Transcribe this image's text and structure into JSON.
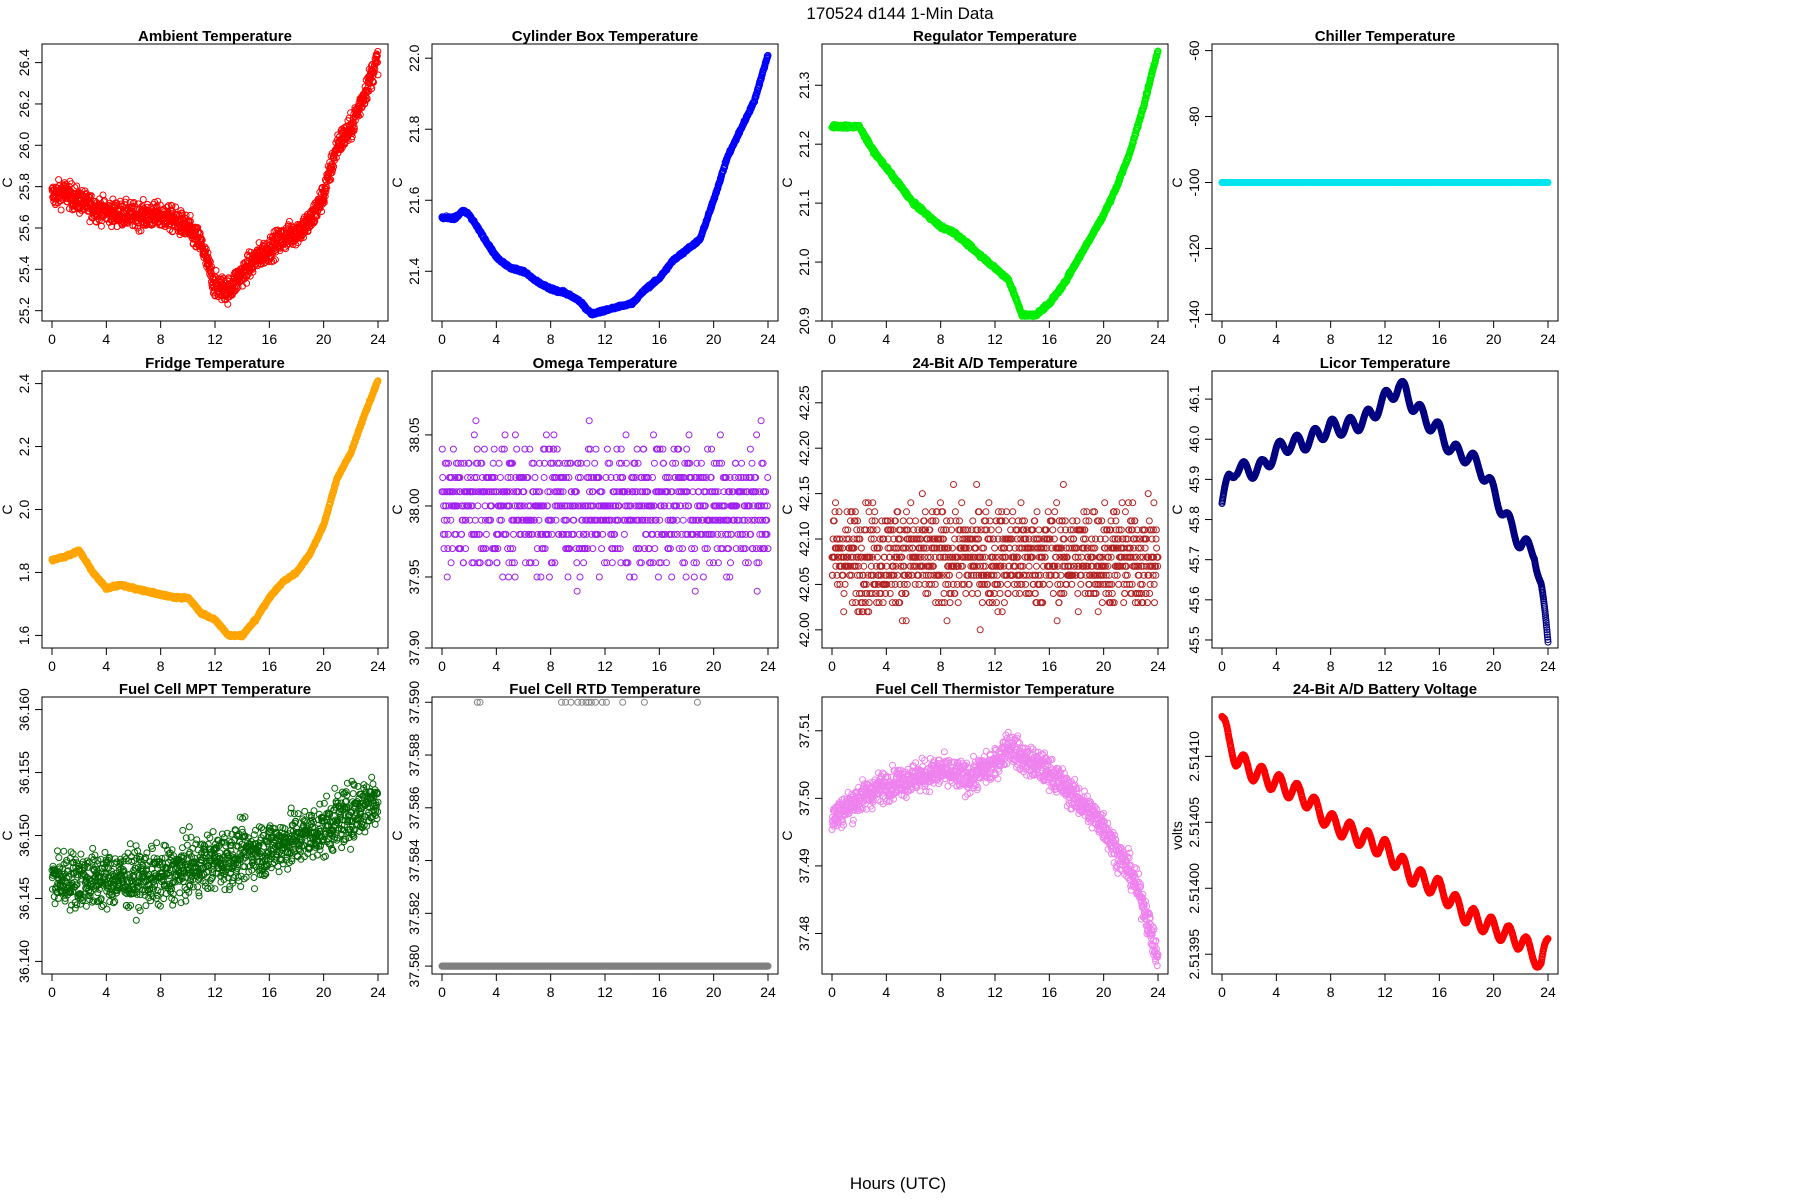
{
  "figure": {
    "title": "170524   d144   1-Min Data",
    "xlabel": "Hours (UTC)"
  },
  "chart_data": [
    {
      "type": "scatter",
      "title": "Ambient Temperature",
      "ylabel": "C",
      "color": "#ff0000",
      "xlim": [
        0,
        24
      ],
      "xticks": [
        0,
        4,
        8,
        12,
        16,
        20,
        24
      ],
      "ylim": [
        25.15,
        26.49
      ],
      "yticks": [
        25.2,
        25.4,
        25.6,
        25.8,
        26.0,
        26.2,
        26.4
      ],
      "ytick_labels": [
        "25.2",
        "25.4",
        "25.6",
        "25.8",
        "26.0",
        "26.2",
        "26.4"
      ],
      "x": [
        0,
        1,
        2,
        3,
        4,
        5,
        6,
        7,
        8,
        9,
        10,
        11,
        12,
        13,
        14,
        15,
        16,
        17,
        18,
        19,
        20,
        21,
        22,
        23,
        24
      ],
      "y": [
        25.76,
        25.77,
        25.73,
        25.7,
        25.68,
        25.67,
        25.66,
        25.66,
        25.66,
        25.64,
        25.6,
        25.52,
        25.32,
        25.3,
        25.38,
        25.45,
        25.5,
        25.55,
        25.58,
        25.63,
        25.76,
        26.0,
        26.08,
        26.25,
        26.42
      ],
      "noise": 0.06,
      "n": 1440
    },
    {
      "type": "scatter",
      "title": "Cylinder Box Temperature",
      "ylabel": "C",
      "color": "#0000ff",
      "xlim": [
        0,
        24
      ],
      "xticks": [
        0,
        4,
        8,
        12,
        16,
        20,
        24
      ],
      "ylim": [
        21.26,
        22.04
      ],
      "yticks": [
        21.4,
        21.6,
        21.8,
        22.0
      ],
      "ytick_labels": [
        "21.4",
        "21.6",
        "21.8",
        "22.0"
      ],
      "x": [
        0,
        1,
        1.5,
        2,
        3,
        4,
        5,
        6,
        7,
        8,
        9,
        10,
        11,
        12,
        13,
        14,
        15,
        16,
        17,
        18,
        19,
        20,
        21,
        22,
        23,
        24
      ],
      "y": [
        21.55,
        21.55,
        21.57,
        21.56,
        21.5,
        21.44,
        21.41,
        21.4,
        21.37,
        21.35,
        21.34,
        21.32,
        21.28,
        21.29,
        21.3,
        21.31,
        21.35,
        21.38,
        21.43,
        21.46,
        21.49,
        21.6,
        21.72,
        21.8,
        21.88,
        22.01
      ],
      "noise": 0.004,
      "n": 1440
    },
    {
      "type": "scatter",
      "title": "Regulator Temperature",
      "ylabel": "C",
      "color": "#00ee00",
      "xlim": [
        0,
        24
      ],
      "xticks": [
        0,
        4,
        8,
        12,
        16,
        20,
        24
      ],
      "ylim": [
        20.9,
        21.37
      ],
      "yticks": [
        20.9,
        21.0,
        21.1,
        21.2,
        21.3
      ],
      "ytick_labels": [
        "20.9",
        "21.0",
        "21.1",
        "21.2",
        "21.3"
      ],
      "x": [
        0,
        2,
        3,
        4,
        5,
        6,
        7,
        8,
        9,
        10,
        11,
        12,
        13,
        14,
        15,
        16,
        17,
        18,
        19,
        20,
        21,
        22,
        23,
        24
      ],
      "y": [
        21.23,
        21.23,
        21.19,
        21.16,
        21.13,
        21.1,
        21.08,
        21.06,
        21.05,
        21.03,
        21.01,
        20.99,
        20.97,
        20.91,
        20.91,
        20.93,
        20.96,
        21.0,
        21.04,
        21.08,
        21.13,
        21.19,
        21.27,
        21.36
      ],
      "noise": 0.003,
      "n": 1440
    },
    {
      "type": "scatter",
      "title": "Chiller Temperature",
      "ylabel": "C",
      "color": "#00e5ee",
      "xlim": [
        0,
        24
      ],
      "xticks": [
        0,
        4,
        8,
        12,
        16,
        20,
        24
      ],
      "ylim": [
        -142,
        -58
      ],
      "yticks": [
        -140,
        -120,
        -100,
        -80,
        -60
      ],
      "ytick_labels": [
        "-140",
        "-120",
        "-100",
        "-80",
        "-60"
      ],
      "x": [
        0,
        24
      ],
      "y": [
        -100,
        -100
      ],
      "noise": 0,
      "n": 1440
    },
    {
      "type": "scatter",
      "title": "Fridge Temperature",
      "ylabel": "C",
      "color": "#ffa500",
      "xlim": [
        0,
        24
      ],
      "xticks": [
        0,
        4,
        8,
        12,
        16,
        20,
        24
      ],
      "ylim": [
        1.56,
        2.44
      ],
      "yticks": [
        1.6,
        1.8,
        2.0,
        2.2,
        2.4
      ],
      "ytick_labels": [
        "1.6",
        "1.8",
        "2.0",
        "2.2",
        "2.4"
      ],
      "x": [
        0,
        1,
        2,
        3,
        4,
        5,
        6,
        7,
        8,
        9,
        10,
        11,
        12,
        13,
        14,
        15,
        16,
        17,
        18,
        19,
        20,
        21,
        22,
        23,
        24
      ],
      "y": [
        1.84,
        1.85,
        1.87,
        1.8,
        1.75,
        1.76,
        1.75,
        1.74,
        1.73,
        1.72,
        1.72,
        1.67,
        1.65,
        1.6,
        1.6,
        1.65,
        1.72,
        1.77,
        1.8,
        1.86,
        1.95,
        2.1,
        2.18,
        2.3,
        2.41
      ],
      "noise": 0.004,
      "n": 1440
    },
    {
      "type": "scatter",
      "title": "Omega Temperature",
      "ylabel": "C",
      "color": "#a020f0",
      "xlim": [
        0,
        24
      ],
      "xticks": [
        0,
        4,
        8,
        12,
        16,
        20,
        24
      ],
      "ylim": [
        37.9,
        38.095
      ],
      "yticks": [
        37.9,
        37.95,
        38.0,
        38.05
      ],
      "ytick_labels": [
        "37.90",
        "37.95",
        "38.00",
        "38.05"
      ],
      "x": [
        0,
        24
      ],
      "y": [
        38.0,
        38.0
      ],
      "noise": 0.045,
      "step": 0.01,
      "n": 1000
    },
    {
      "type": "scatter",
      "title": "24-Bit A/D Temperature",
      "ylabel": "C",
      "color": "#b22222",
      "xlim": [
        0,
        24
      ],
      "xticks": [
        0,
        4,
        8,
        12,
        16,
        20,
        24
      ],
      "ylim": [
        41.98,
        42.285
      ],
      "yticks": [
        42.0,
        42.05,
        42.1,
        42.15,
        42.2,
        42.25
      ],
      "ytick_labels": [
        "42.00",
        "42.05",
        "42.10",
        "42.15",
        "42.20",
        "42.25"
      ],
      "x": [
        0,
        24
      ],
      "y": [
        42.08,
        42.08
      ],
      "noise": 0.055,
      "step": 0.01,
      "n": 1200
    },
    {
      "type": "scatter",
      "title": "Licor Temperature",
      "ylabel": "C",
      "color": "#000080",
      "xlim": [
        0,
        24
      ],
      "xticks": [
        0,
        4,
        8,
        12,
        16,
        20,
        24
      ],
      "ylim": [
        45.48,
        46.17
      ],
      "yticks": [
        45.5,
        45.6,
        45.7,
        45.8,
        45.9,
        46.0,
        46.1
      ],
      "ytick_labels": [
        "45.5",
        "45.6",
        "45.7",
        "45.8",
        "45.9",
        "46.0",
        "46.1"
      ],
      "x": [
        0,
        0.5,
        1,
        2,
        3,
        4,
        5,
        6,
        7,
        8,
        9,
        10,
        11,
        12,
        13,
        13.5,
        14,
        15,
        16,
        17,
        18,
        19,
        20,
        21,
        22,
        23,
        23.5,
        24
      ],
      "y": [
        45.84,
        45.9,
        45.93,
        45.92,
        45.93,
        45.97,
        45.99,
        45.99,
        46.01,
        46.03,
        46.03,
        46.04,
        46.06,
        46.1,
        46.13,
        46.12,
        46.09,
        46.05,
        46.02,
        45.97,
        45.96,
        45.93,
        45.87,
        45.8,
        45.74,
        45.72,
        45.63,
        45.49
      ],
      "noise": 0.0,
      "wave": 0.02,
      "n": 1440
    },
    {
      "type": "scatter",
      "title": "Fuel Cell MPT Temperature",
      "ylabel": "C",
      "color": "#006400",
      "xlim": [
        0,
        24
      ],
      "xticks": [
        0,
        4,
        8,
        12,
        16,
        20,
        24
      ],
      "ylim": [
        36.139,
        36.161
      ],
      "yticks": [
        36.14,
        36.145,
        36.15,
        36.155,
        36.16
      ],
      "ytick_labels": [
        "36.140",
        "36.145",
        "36.150",
        "36.155",
        "36.160"
      ],
      "x": [
        0,
        4,
        8,
        12,
        16,
        20,
        24
      ],
      "y": [
        36.1465,
        36.1465,
        36.1467,
        36.148,
        36.149,
        36.1505,
        36.153
      ],
      "noise": 0.0022,
      "n": 1300
    },
    {
      "type": "scatter",
      "title": "Fuel Cell RTD Temperature",
      "ylabel": "C",
      "color": "#808080",
      "xlim": [
        0,
        24
      ],
      "xticks": [
        0,
        4,
        8,
        12,
        16,
        20,
        24
      ],
      "ylim": [
        37.5797,
        37.5902
      ],
      "yticks": [
        37.58,
        37.582,
        37.584,
        37.586,
        37.588,
        37.59
      ],
      "ytick_labels": [
        "37.580",
        "37.582",
        "37.584",
        "37.586",
        "37.588",
        "37.590"
      ],
      "x": [
        0,
        24
      ],
      "y": [
        37.58,
        37.58
      ],
      "noise": 0,
      "n": 1440,
      "outliers_x": [
        2.6,
        2.8,
        8.8,
        9.1,
        9.5,
        10.0,
        10.3,
        10.6,
        10.8,
        11.0,
        11.3,
        11.8,
        12.1,
        13.3,
        14.9,
        18.8
      ],
      "outliers_y": 37.59
    },
    {
      "type": "scatter",
      "title": "Fuel Cell Thermistor Temperature",
      "ylabel": "C",
      "color": "#ee82ee",
      "xlim": [
        0,
        24
      ],
      "xticks": [
        0,
        4,
        8,
        12,
        16,
        20,
        24
      ],
      "ylim": [
        37.474,
        37.515
      ],
      "yticks": [
        37.48,
        37.49,
        37.5,
        37.51
      ],
      "ytick_labels": [
        "37.48",
        "37.49",
        "37.50",
        "37.51"
      ],
      "x": [
        0,
        2,
        4,
        6,
        8,
        10,
        12,
        13,
        14,
        16,
        18,
        20,
        21,
        22,
        23,
        24
      ],
      "y": [
        37.497,
        37.5,
        37.502,
        37.503,
        37.504,
        37.503,
        37.505,
        37.508,
        37.506,
        37.504,
        37.5,
        37.496,
        37.492,
        37.489,
        37.484,
        37.476
      ],
      "noise": 0.0022,
      "n": 1300
    },
    {
      "type": "scatter",
      "title": "24-Bit A/D Battery Voltage",
      "ylabel": "volts",
      "color": "#ff0000",
      "xlim": [
        0,
        24
      ],
      "xticks": [
        0,
        4,
        8,
        12,
        16,
        20,
        24
      ],
      "ylim": [
        2.513935,
        2.514145
      ],
      "yticks": [
        2.51395,
        2.514,
        2.51405,
        2.5141
      ],
      "ytick_labels": [
        "2.51395",
        "2.51400",
        "2.51405",
        "2.51410"
      ],
      "x": [
        0,
        0.5,
        1,
        2,
        4,
        6,
        8,
        10,
        12,
        14,
        16,
        18,
        20,
        22,
        23,
        23.5,
        24
      ],
      "y": [
        2.51413,
        2.51411,
        2.5141,
        2.51409,
        2.51408,
        2.51407,
        2.51405,
        2.51404,
        2.51403,
        2.51401,
        2.514,
        2.51398,
        2.51397,
        2.51396,
        2.51395,
        2.51394,
        2.51396
      ],
      "noise": 4e-07,
      "wave": 7e-06,
      "n": 1440
    }
  ]
}
